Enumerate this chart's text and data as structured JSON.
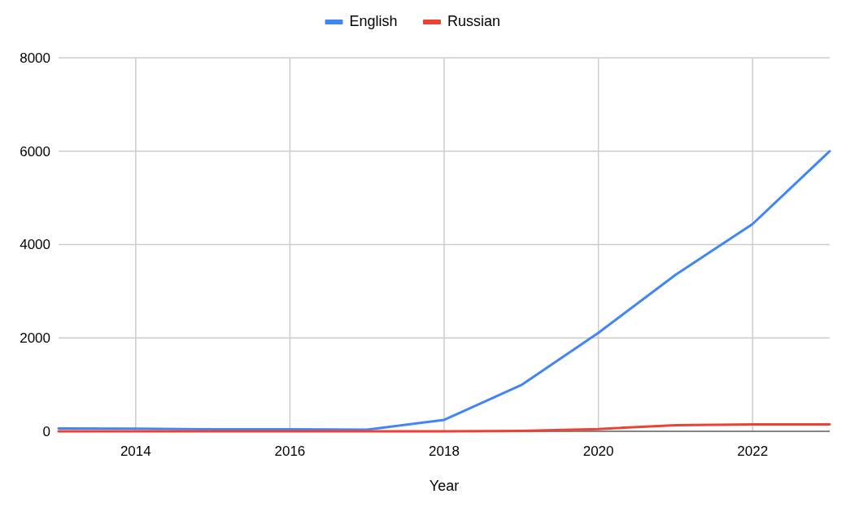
{
  "chart_data": {
    "type": "line",
    "xlabel": "Year",
    "x": [
      2013,
      2014,
      2015,
      2016,
      2017,
      2018,
      2019,
      2020,
      2021,
      2022,
      2023
    ],
    "series": [
      {
        "name": "English",
        "color": "#4285f4",
        "values": [
          60,
          55,
          45,
          45,
          35,
          245,
          990,
          2110,
          3350,
          4440,
          6000
        ]
      },
      {
        "name": "Russian",
        "color": "#ea4335",
        "values": [
          0,
          0,
          0,
          0,
          0,
          0,
          10,
          50,
          130,
          150,
          150
        ]
      }
    ],
    "xlim": [
      2013,
      2023
    ],
    "xticks": [
      2014,
      2016,
      2018,
      2020,
      2022
    ],
    "ylim": [
      0,
      8000
    ],
    "yticks": [
      0,
      2000,
      4000,
      6000,
      8000
    ],
    "grid": true,
    "legend": "top",
    "line_style": "solid",
    "marker": "none"
  }
}
